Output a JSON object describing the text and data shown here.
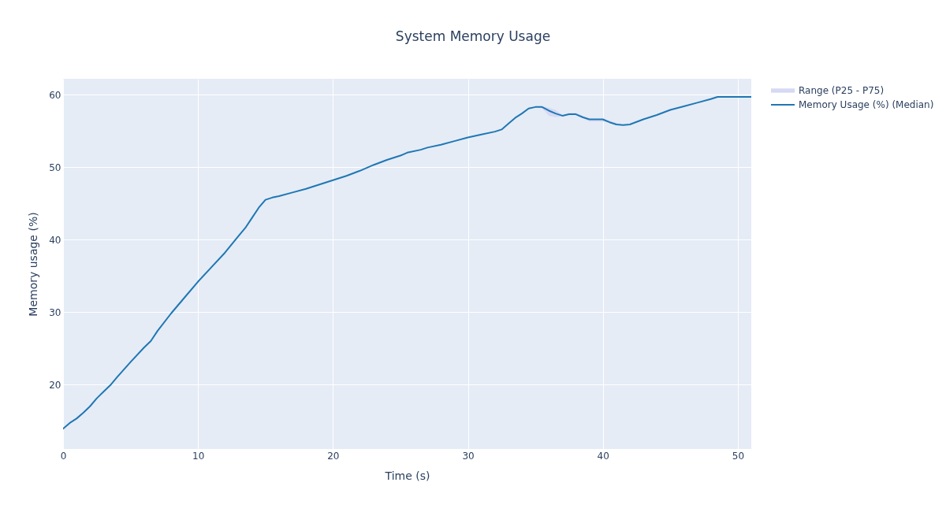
{
  "chart_data": {
    "type": "line",
    "title": "System Memory Usage",
    "xlabel": "Time (s)",
    "ylabel": "Memory usage (%)",
    "x": [
      0,
      0.5,
      1,
      1.5,
      2,
      2.5,
      3,
      3.5,
      4,
      5,
      6,
      6.5,
      7,
      8,
      9,
      10,
      11,
      12,
      13,
      13.5,
      14,
      14.5,
      15,
      15.5,
      16,
      17,
      18,
      19,
      20,
      21,
      22,
      23,
      24,
      25,
      25.5,
      26.5,
      27,
      28,
      29,
      30,
      31,
      32,
      32.5,
      33,
      33.5,
      34,
      34.5,
      35,
      35.5,
      36,
      36.5,
      37,
      37.5,
      38,
      38.5,
      39,
      40,
      40.5,
      41,
      41.5,
      42,
      43,
      44,
      45,
      46,
      47,
      48,
      48.5,
      49,
      50,
      51
    ],
    "series": [
      {
        "name": "Range (P25 - P75)",
        "type": "area",
        "color": "#d6d9f4",
        "values": [
          null,
          null,
          null,
          null,
          null,
          null,
          null,
          null,
          null,
          null,
          null,
          null,
          null,
          null,
          null,
          null,
          null,
          null,
          null,
          null,
          null,
          null,
          null,
          null,
          null,
          null,
          null,
          null,
          null,
          null,
          null,
          null,
          null,
          null,
          null,
          null,
          null,
          null,
          null,
          null,
          null,
          null,
          null,
          null,
          null,
          null,
          null,
          null,
          null,
          null,
          null,
          null,
          null,
          null,
          null,
          null,
          null,
          null,
          null,
          null,
          null,
          null,
          null,
          null,
          null,
          null,
          null,
          null,
          null,
          null,
          null
        ],
        "lower": [
          13.9,
          14.7,
          15.3,
          16.1,
          17.0,
          18.1,
          19.0,
          19.9,
          21.0,
          23.1,
          25.1,
          26.0,
          27.4,
          29.8,
          32.0,
          34.2,
          36.2,
          38.2,
          40.5,
          41.6,
          43.0,
          44.4,
          45.5,
          45.8,
          46.0,
          46.5,
          47.0,
          47.6,
          48.2,
          48.8,
          49.5,
          50.3,
          51.0,
          51.6,
          52.0,
          52.4,
          52.7,
          53.1,
          53.6,
          54.1,
          54.5,
          54.9,
          55.2,
          56.0,
          56.8,
          57.4,
          58.1,
          58.3,
          58.1,
          57.1,
          56.9,
          57.0,
          57.3,
          57.3,
          56.8,
          56.3,
          56.3,
          56.1,
          55.9,
          55.8,
          55.9,
          56.6,
          57.2,
          57.9,
          58.4,
          58.9,
          59.4,
          59.7,
          59.7,
          59.7,
          59.7
        ],
        "upper": [
          13.9,
          14.7,
          15.3,
          16.1,
          17.0,
          18.1,
          19.0,
          19.9,
          21.0,
          23.1,
          25.1,
          26.0,
          27.4,
          29.8,
          32.0,
          34.2,
          36.2,
          38.2,
          40.5,
          41.6,
          43.0,
          44.4,
          45.5,
          45.8,
          46.0,
          46.5,
          47.0,
          47.6,
          48.2,
          48.8,
          49.5,
          50.3,
          51.0,
          51.6,
          52.0,
          52.4,
          52.7,
          53.1,
          53.6,
          54.1,
          54.5,
          54.9,
          55.2,
          56.0,
          56.8,
          57.4,
          58.1,
          58.3,
          58.4,
          58.2,
          57.9,
          57.2,
          57.5,
          57.5,
          57.1,
          56.6,
          56.6,
          56.4,
          56.1,
          55.8,
          55.9,
          56.6,
          57.2,
          57.9,
          58.4,
          58.9,
          59.4,
          59.7,
          59.7,
          59.7,
          59.7
        ]
      },
      {
        "name": "Memory Usage (%) (Median)",
        "color": "#1f77b4",
        "values": [
          13.9,
          14.7,
          15.3,
          16.1,
          17.0,
          18.1,
          19.0,
          19.9,
          21.0,
          23.1,
          25.1,
          26.0,
          27.4,
          29.8,
          32.0,
          34.2,
          36.2,
          38.2,
          40.5,
          41.6,
          43.0,
          44.4,
          45.5,
          45.8,
          46.0,
          46.5,
          47.0,
          47.6,
          48.2,
          48.8,
          49.5,
          50.3,
          51.0,
          51.6,
          52.0,
          52.4,
          52.7,
          53.1,
          53.6,
          54.1,
          54.5,
          54.9,
          55.2,
          56.0,
          56.8,
          57.4,
          58.1,
          58.3,
          58.3,
          57.8,
          57.4,
          57.1,
          57.3,
          57.3,
          56.9,
          56.6,
          56.6,
          56.2,
          55.9,
          55.8,
          55.9,
          56.6,
          57.2,
          57.9,
          58.4,
          58.9,
          59.4,
          59.7,
          59.7,
          59.7,
          59.7
        ]
      }
    ],
    "xlim": [
      0,
      51
    ],
    "xticks": [
      0,
      10,
      20,
      30,
      40,
      50
    ],
    "ylim": [
      11.1,
      62.2
    ],
    "yticks": [
      20,
      30,
      40,
      50,
      60
    ],
    "grid": true,
    "legend": "right"
  }
}
